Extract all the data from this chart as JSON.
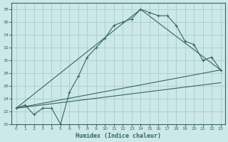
{
  "xlabel": "Humidex (Indice chaleur)",
  "ylabel": "",
  "bg_color": "#cce8e8",
  "grid_color": "#aacccc",
  "line_color": "#336666",
  "xlim": [
    -0.5,
    23.5
  ],
  "ylim": [
    20,
    39
  ],
  "xticks": [
    0,
    1,
    2,
    3,
    4,
    5,
    6,
    7,
    8,
    9,
    10,
    11,
    12,
    13,
    14,
    15,
    16,
    17,
    18,
    19,
    20,
    21,
    22,
    23
  ],
  "yticks": [
    20,
    22,
    24,
    26,
    28,
    30,
    32,
    34,
    36,
    38
  ],
  "curve_x": [
    0,
    1,
    2,
    3,
    4,
    5,
    6,
    7,
    8,
    9,
    10,
    11,
    12,
    13,
    14,
    15,
    16,
    17,
    18,
    19,
    20,
    21,
    22,
    23
  ],
  "curve_y": [
    22.5,
    23,
    21.5,
    22.5,
    22.5,
    20,
    25,
    27.5,
    30.5,
    32,
    33.5,
    35.5,
    36,
    36.5,
    38,
    37.5,
    37,
    37,
    35.5,
    33,
    32.5,
    30,
    30.5,
    28.5
  ],
  "line1_x": [
    0,
    23
  ],
  "line1_y": [
    22.5,
    28.5
  ],
  "line2_x": [
    0,
    23
  ],
  "line2_y": [
    22.5,
    26.5
  ],
  "line3_x": [
    0,
    14,
    23
  ],
  "line3_y": [
    22.5,
    38,
    28.5
  ]
}
